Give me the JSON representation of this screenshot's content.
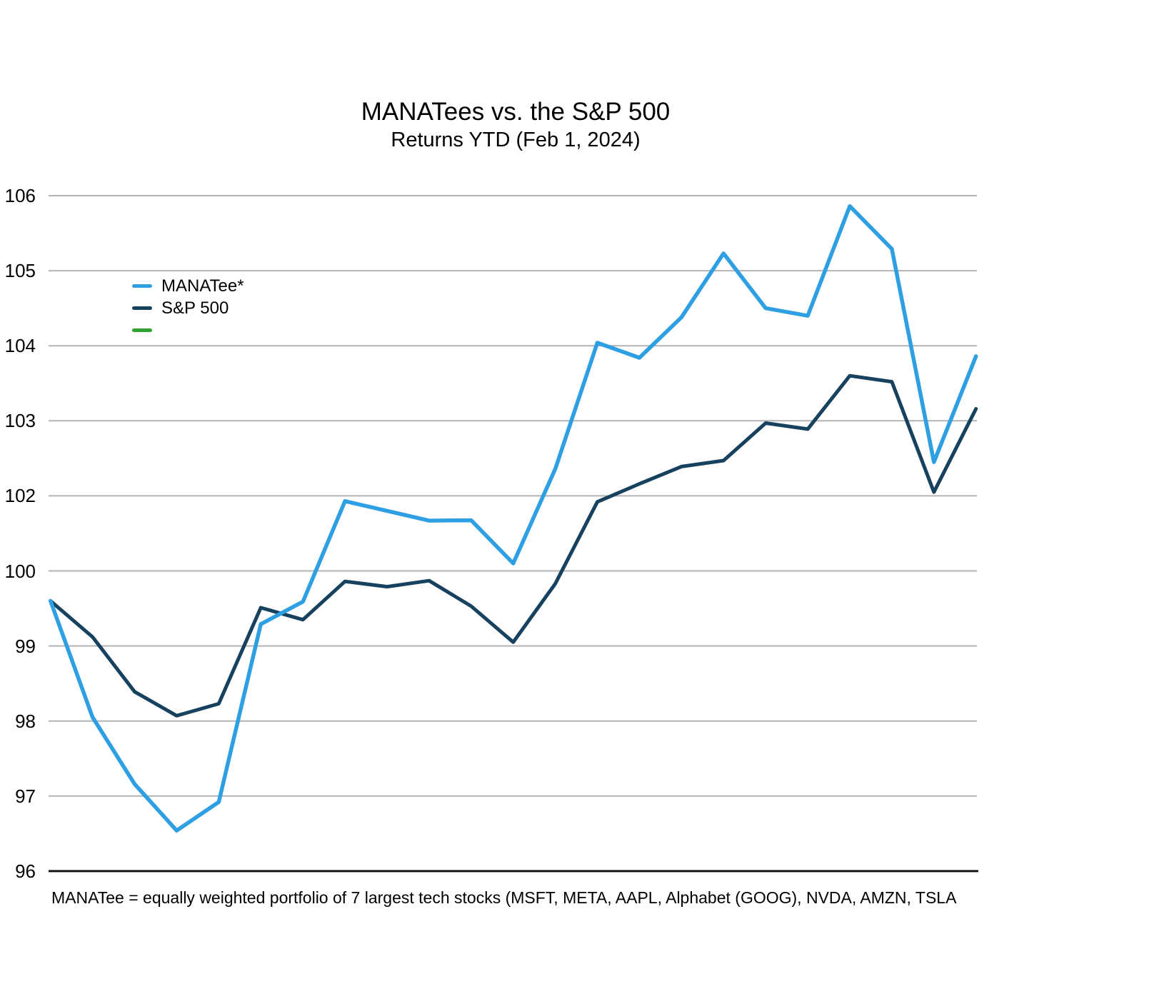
{
  "page": {
    "background": "#ffffff"
  },
  "header": {
    "title": "MANATees vs. the S&P 500",
    "subtitle": "Returns YTD (Feb 1, 2024)"
  },
  "footnote": "MANATee = equally weighted portfolio of 7 largest tech stocks (MSFT, META, AAPL, Alphabet (GOOG), NVDA, AMZN, TSLA",
  "legend": {
    "items": [
      {
        "label": "MANATee*",
        "color": "#2E9FE3"
      },
      {
        "label": "S&P 500",
        "color": "#16415F"
      },
      {
        "label": "",
        "color": "#2EA32D"
      }
    ]
  },
  "colors": {
    "manatee_line": "#2E9FE3",
    "sp500_line": "#16415F",
    "unused_green": "#2EA32D",
    "gridline": "#B3B3B3",
    "axis_line": "#161616",
    "text": "#000000"
  },
  "chart_data": {
    "type": "line",
    "title": "MANATees vs. the S&P 500",
    "subtitle": "Returns YTD (Feb 1, 2024)",
    "x_description": "23 daily observations from start of 2024 through Feb 1, 2024 (baseline 100 = start of year); no x-axis tick labels are shown",
    "y_tick_labels_top_to_bottom": [
      "106",
      "105",
      "104",
      "103",
      "102",
      "100",
      "99",
      "98",
      "97",
      "96"
    ],
    "y_axis_quirk": "Tick label 101 is skipped: the 10 gridlines are evenly spaced, so the single gap between the 100 and 102 gridlines spans 2 units",
    "grid": true,
    "legend_position": "inside-upper-left",
    "series": [
      {
        "name": "MANATee*",
        "color": "#2E9FE3",
        "values": [
          99.6,
          98.05,
          97.16,
          96.54,
          96.92,
          99.29,
          99.59,
          101.86,
          101.6,
          101.34,
          101.35,
          100.2,
          102.36,
          104.04,
          103.84,
          104.38,
          105.23,
          104.5,
          104.4,
          105.86,
          105.29,
          102.45,
          103.86
        ]
      },
      {
        "name": "S&P 500",
        "color": "#16415F",
        "values": [
          99.6,
          99.12,
          98.39,
          98.07,
          98.23,
          99.51,
          99.35,
          99.86,
          99.79,
          99.87,
          99.53,
          99.05,
          99.83,
          101.84,
          102.16,
          102.39,
          102.47,
          102.97,
          102.89,
          103.6,
          103.52,
          102.05,
          103.16
        ]
      }
    ]
  }
}
